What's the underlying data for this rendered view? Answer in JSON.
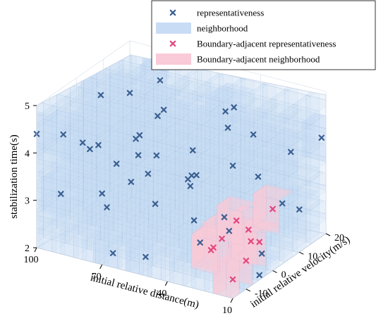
{
  "chart_data": {
    "type": "scatter",
    "dimensions": 3,
    "x_axis": {
      "label": "initial relative distance(m)",
      "range": [
        10,
        100
      ],
      "ticks": [
        100,
        70,
        40,
        10
      ]
    },
    "y_axis": {
      "label": "initial relative velocity(m/s)",
      "range": [
        -15,
        20
      ],
      "ticks": [
        20,
        10,
        0,
        -10
      ]
    },
    "z_axis": {
      "label": "stabilization time(s)",
      "range": [
        2,
        5
      ],
      "ticks": [
        2,
        3,
        4,
        5
      ]
    },
    "legend": {
      "placement": "top-right",
      "entries": [
        {
          "name": "representativeness",
          "marker": "x",
          "color": "#3b5f91"
        },
        {
          "name": "neighborhood",
          "marker": "box",
          "color": "#c9dcf6"
        },
        {
          "name": "Boundary-adjacent representativeness",
          "marker": "x",
          "color": "#e2487f"
        },
        {
          "name": "Boundary-adjacent neighborhood",
          "marker": "box",
          "color": "#f9cad7"
        }
      ]
    },
    "series": [
      {
        "name": "representativeness",
        "points": [
          [
            100,
            -15,
            4.4
          ],
          [
            100,
            -5,
            4.0
          ],
          [
            100,
            5,
            3.3
          ],
          [
            100,
            15,
            2.6
          ],
          [
            95,
            -10,
            3.0
          ],
          [
            95,
            5,
            4.5
          ],
          [
            90,
            0,
            3.7
          ],
          [
            90,
            15,
            2.9
          ],
          [
            85,
            -10,
            4.2
          ],
          [
            85,
            10,
            3.5
          ],
          [
            80,
            -5,
            2.7
          ],
          [
            80,
            15,
            4.6
          ],
          [
            75,
            0,
            3.1
          ],
          [
            75,
            10,
            4.1
          ],
          [
            70,
            -15,
            3.5
          ],
          [
            70,
            5,
            2.5
          ],
          [
            65,
            -5,
            4.4
          ],
          [
            65,
            15,
            3.3
          ],
          [
            60,
            0,
            4.8
          ],
          [
            60,
            10,
            2.8
          ],
          [
            55,
            -10,
            3.9
          ],
          [
            55,
            5,
            3.2
          ],
          [
            50,
            -15,
            2.4
          ],
          [
            50,
            15,
            4.3
          ],
          [
            45,
            0,
            3.6
          ],
          [
            40,
            10,
            4.7
          ],
          [
            40,
            -5,
            2.9
          ],
          [
            35,
            -10,
            4.1
          ],
          [
            35,
            15,
            3.1
          ],
          [
            30,
            0,
            2.6
          ],
          [
            25,
            5,
            4.5
          ],
          [
            20,
            -10,
            3.4
          ],
          [
            20,
            15,
            3.8
          ],
          [
            15,
            0,
            2.3
          ],
          [
            10,
            -15,
            4.8
          ],
          [
            10,
            10,
            2.9
          ],
          [
            10,
            -5,
            2.1
          ],
          [
            12,
            20,
            4.0
          ],
          [
            30,
            20,
            2.4
          ],
          [
            55,
            20,
            3.7
          ],
          [
            85,
            20,
            4.9
          ],
          [
            100,
            20,
            3.9
          ],
          [
            25,
            -15,
            3.0
          ],
          [
            45,
            -15,
            4.6
          ],
          [
            65,
            -15,
            2.3
          ]
        ]
      },
      {
        "name": "Boundary-adjacent representativeness",
        "points": [
          [
            10,
            -15,
            2.4
          ],
          [
            10,
            -10,
            2.6
          ],
          [
            10,
            -5,
            2.8
          ],
          [
            15,
            -5,
            3.0
          ],
          [
            20,
            0,
            2.5
          ],
          [
            15,
            -15,
            3.2
          ],
          [
            10,
            0,
            3.3
          ],
          [
            25,
            -10,
            2.7
          ],
          [
            20,
            -15,
            2.9
          ],
          [
            12,
            -12,
            3.5
          ]
        ]
      }
    ]
  }
}
